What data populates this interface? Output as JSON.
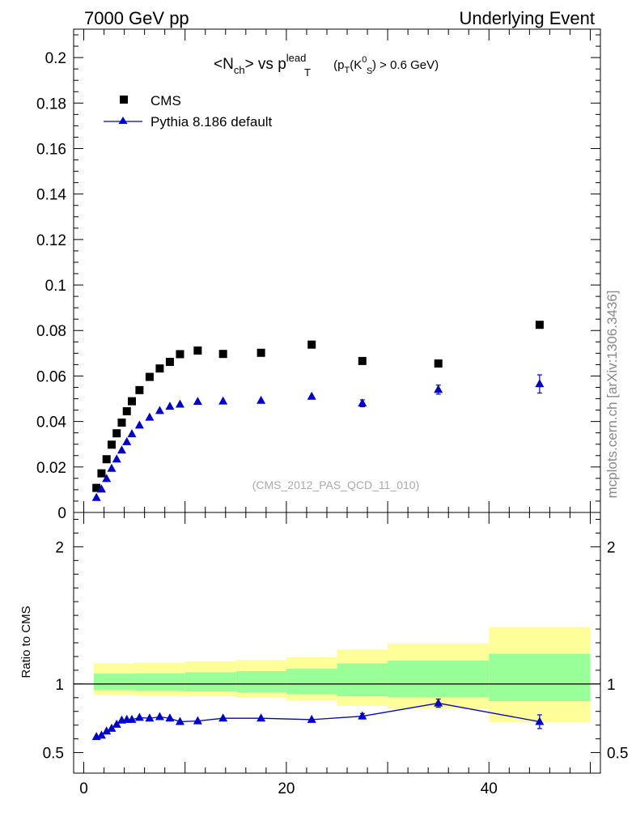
{
  "header": {
    "left": "7000 GeV pp",
    "right": "Underlying Event"
  },
  "watermark": "(CMS_2012_PAS_QCD_11_010)",
  "side_label": "mcplots.cern.ch [arXiv:1306.3436]",
  "colors": {
    "cms": "#000000",
    "pythia": "#0000cc",
    "band_inner": "#99ff99",
    "band_outer": "#ffff99"
  },
  "chart_data": [
    {
      "type": "scatter",
      "title_parts": {
        "a": "<N",
        "a_sub": "ch",
        "b": "> vs p",
        "b_sup": "lead",
        "b_sub": "T",
        "c": " (p",
        "c_sub": "T",
        "d": "(K",
        "d_sup": "0",
        "d_sub": "S",
        "e": ") > 0.6 GeV)"
      },
      "xlim": [
        -1,
        51
      ],
      "ylim": [
        0,
        0.2125
      ],
      "y_ticks": [
        0.02,
        0.04,
        0.06,
        0.08,
        0.1,
        0.12,
        0.14,
        0.16,
        0.18,
        0.2
      ],
      "y_tick_labels": [
        "0.02",
        "0.04",
        "0.06",
        "0.08",
        "0.1",
        "0.12",
        "0.14",
        "0.16",
        "0.18",
        "0.2"
      ],
      "y_zero_label": "0",
      "legend_position": "top-left",
      "series": [
        {
          "name": "CMS",
          "marker": "square",
          "x": [
            1.25,
            1.75,
            2.25,
            2.75,
            3.25,
            3.75,
            4.25,
            4.75,
            5.5,
            6.5,
            7.5,
            8.5,
            9.5,
            11.25,
            13.75,
            17.5,
            22.5,
            27.5,
            35,
            45
          ],
          "y": [
            0.0108,
            0.0172,
            0.0234,
            0.0298,
            0.0348,
            0.0395,
            0.0445,
            0.0489,
            0.0538,
            0.0596,
            0.0633,
            0.0662,
            0.0696,
            0.0712,
            0.0697,
            0.0702,
            0.0738,
            0.0666,
            0.0655,
            0.0825
          ]
        },
        {
          "name": "Pythia 8.186 default",
          "marker": "triangle",
          "x": [
            1.25,
            1.75,
            2.25,
            2.75,
            3.25,
            3.75,
            4.25,
            4.75,
            5.5,
            6.5,
            7.5,
            8.5,
            9.5,
            11.25,
            13.75,
            17.5,
            22.5,
            27.5,
            35,
            45
          ],
          "y": [
            0.0065,
            0.0102,
            0.0148,
            0.0193,
            0.0234,
            0.0273,
            0.031,
            0.0345,
            0.0383,
            0.0418,
            0.0447,
            0.0466,
            0.0475,
            0.0487,
            0.0489,
            0.0492,
            0.051,
            0.048,
            0.054,
            0.0565
          ],
          "yerr": [
            0,
            0,
            0,
            0,
            0,
            0,
            0,
            0,
            0,
            0,
            0,
            0,
            0,
            0,
            0,
            0,
            0,
            0.0015,
            0.002,
            0.004
          ]
        }
      ]
    },
    {
      "type": "line",
      "ylabel": "Ratio to CMS",
      "xlim": [
        -1,
        51
      ],
      "ylim": [
        0.35,
        2.25
      ],
      "x_ticks": [
        0,
        20,
        40
      ],
      "x_tick_labels": [
        "0",
        "20",
        "40"
      ],
      "y_ticks": [
        0.5,
        1,
        2
      ],
      "y_tick_labels": [
        "0.5",
        "1",
        "2"
      ],
      "bands": {
        "edges": [
          1,
          5,
          10,
          15,
          20,
          25,
          30,
          40,
          50
        ],
        "outer_low": [
          0.92,
          0.915,
          0.91,
          0.9,
          0.88,
          0.84,
          0.82,
          0.72
        ],
        "outer_high": [
          1.15,
          1.155,
          1.165,
          1.175,
          1.195,
          1.25,
          1.295,
          1.415
        ],
        "inner_low": [
          0.955,
          0.952,
          0.945,
          0.94,
          0.925,
          0.91,
          0.905,
          0.875
        ],
        "inner_high": [
          1.075,
          1.077,
          1.085,
          1.093,
          1.11,
          1.15,
          1.17,
          1.22
        ]
      },
      "series": [
        {
          "name": "Pythia 8.186 default",
          "x": [
            1.25,
            1.75,
            2.25,
            2.75,
            3.25,
            3.75,
            4.25,
            4.75,
            5.5,
            6.5,
            7.5,
            8.5,
            9.5,
            11.25,
            13.75,
            17.5,
            22.5,
            27.5,
            35,
            45
          ],
          "y": [
            0.615,
            0.625,
            0.655,
            0.675,
            0.705,
            0.735,
            0.74,
            0.74,
            0.755,
            0.75,
            0.76,
            0.75,
            0.725,
            0.73,
            0.75,
            0.75,
            0.74,
            0.765,
            0.86,
            0.725
          ],
          "yerr": [
            0,
            0,
            0,
            0,
            0,
            0,
            0,
            0,
            0,
            0,
            0,
            0,
            0,
            0,
            0,
            0,
            0,
            0.02,
            0.03,
            0.05
          ]
        }
      ]
    }
  ]
}
